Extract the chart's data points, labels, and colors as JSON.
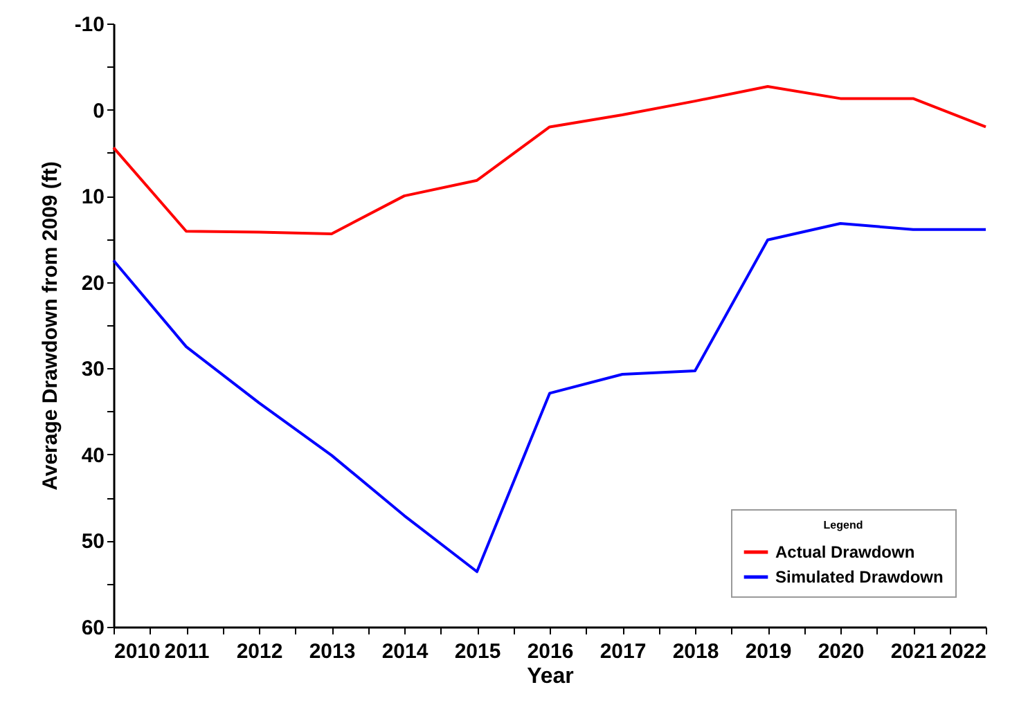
{
  "chart_data": {
    "type": "line",
    "xlabel": "Year",
    "ylabel": "Average Drawdown from 2009 (ft)",
    "legend_title": "Legend",
    "x": [
      2010,
      2011,
      2012,
      2013,
      2014,
      2015,
      2016,
      2017,
      2018,
      2019,
      2020,
      2021,
      2022
    ],
    "series": [
      {
        "name": "Actual Drawdown",
        "color": "#ff0000",
        "values": [
          4.4,
          14.1,
          14.2,
          14.4,
          10.0,
          8.2,
          2.0,
          0.6,
          -1.0,
          -2.7,
          -1.3,
          -1.3,
          2.0
        ]
      },
      {
        "name": "Simulated Drawdown",
        "color": "#0000ff",
        "values": [
          17.5,
          27.5,
          34.0,
          40.1,
          47.1,
          53.6,
          32.9,
          30.7,
          30.3,
          15.1,
          13.2,
          13.9,
          13.9
        ]
      }
    ],
    "xlim": [
      2010,
      2022
    ],
    "xticks": [
      2010,
      {
        "value": 2010.5,
        "label": null
      },
      2011,
      {
        "value": 2011.5,
        "label": null
      },
      2012,
      {
        "value": 2012.5,
        "label": null
      },
      2013,
      {
        "value": 2013.5,
        "label": null
      },
      2014,
      {
        "value": 2014.5,
        "label": null
      },
      2015,
      {
        "value": 2015.5,
        "label": null
      },
      2016,
      {
        "value": 2016.5,
        "label": null
      },
      2017,
      {
        "value": 2017.5,
        "label": null
      },
      2018,
      {
        "value": 2018.5,
        "label": null
      },
      2019,
      {
        "value": 2019.5,
        "label": null
      },
      2020,
      {
        "value": 2020.5,
        "label": null
      },
      2021,
      {
        "value": 2021.5,
        "label": null
      },
      2022
    ],
    "ylim": [
      60,
      -10
    ],
    "yticks": [
      -10,
      {
        "value": -5,
        "label": null
      },
      0,
      {
        "value": 5,
        "label": null
      },
      10,
      {
        "value": 15,
        "label": null
      },
      20,
      {
        "value": 25,
        "label": null
      },
      30,
      {
        "value": 35,
        "label": null
      },
      40,
      {
        "value": 45,
        "label": null
      },
      50,
      {
        "value": 55,
        "label": null
      },
      60
    ],
    "grid": false,
    "legend": "bottom right",
    "marker": "none",
    "line_style": "solid"
  }
}
